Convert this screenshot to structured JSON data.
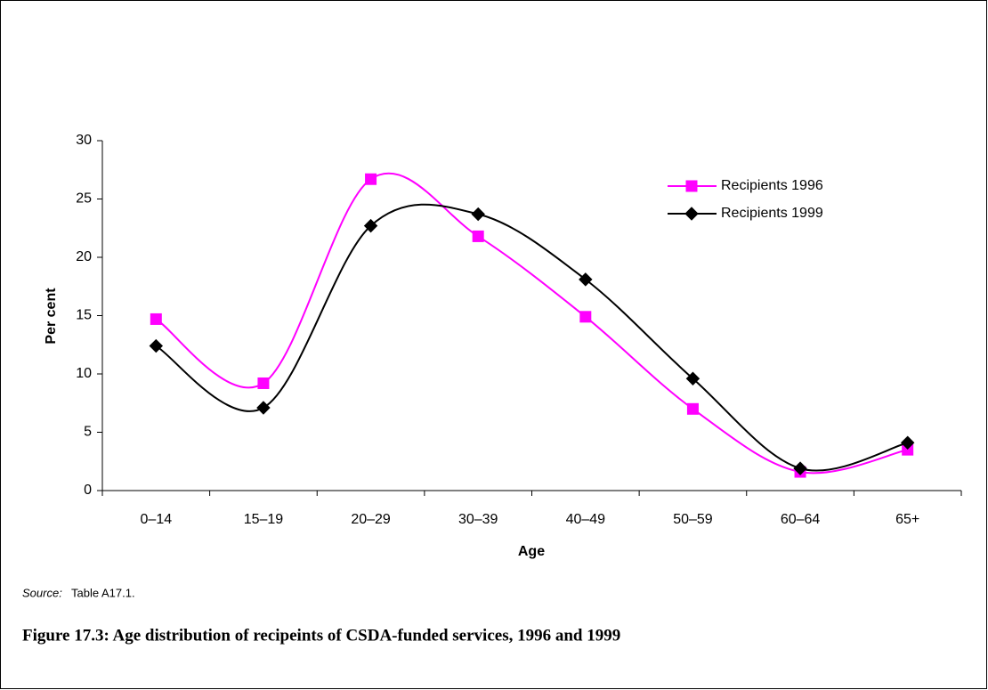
{
  "chart_data": {
    "type": "line",
    "ylabel": "Per cent",
    "xlabel": "Age",
    "categories": [
      "0–14",
      "15–19",
      "20–29",
      "30–39",
      "40–49",
      "50–59",
      "60–64",
      "65+"
    ],
    "series": [
      {
        "name": "Recipients 1996",
        "color": "#ff00ff",
        "marker": "square",
        "values": [
          14.7,
          9.2,
          26.7,
          21.8,
          14.9,
          7.0,
          1.6,
          3.5
        ]
      },
      {
        "name": "Recipients 1999",
        "color": "#000000",
        "marker": "diamond",
        "values": [
          12.4,
          7.1,
          22.7,
          23.7,
          18.1,
          9.6,
          1.9,
          4.1
        ]
      }
    ],
    "ylim": [
      0,
      30
    ],
    "yticks": [
      0,
      5,
      10,
      15,
      20,
      25,
      30
    ],
    "smooth": true,
    "grid": false,
    "legend": "upper right",
    "source_label": "Source:",
    "source": "Table A17.1.",
    "caption": "Figure 17.3: Age distribution of recipeints of CSDA-funded services, 1996 and 1999"
  }
}
